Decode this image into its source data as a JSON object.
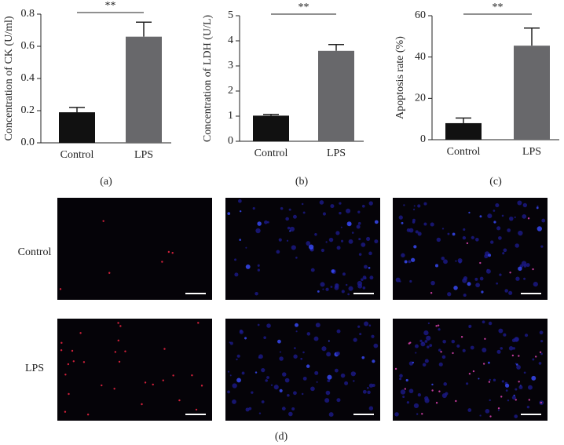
{
  "chart_data": [
    {
      "type": "bar",
      "panel_label": "(a)",
      "ylabel": "Concentration of CK (U/ml)",
      "categories": [
        "Control",
        "LPS"
      ],
      "values": [
        0.19,
        0.66
      ],
      "errors": [
        0.03,
        0.09
      ],
      "colors": [
        "#111111",
        "#68686b"
      ],
      "annotation": "**",
      "ylim": [
        0,
        0.8
      ],
      "yticks": [
        {
          "value": 0,
          "label": "0.0"
        },
        0.2,
        0.4,
        0.6,
        0.8
      ]
    },
    {
      "type": "bar",
      "panel_label": "(b)",
      "ylabel": "Concentration of LDH (U/L)",
      "categories": [
        "Control",
        "LPS"
      ],
      "values": [
        1.02,
        3.6
      ],
      "errors": [
        0.05,
        0.25
      ],
      "colors": [
        "#111111",
        "#68686b"
      ],
      "annotation": "**",
      "ylim": [
        0,
        5
      ],
      "yticks": [
        0,
        1,
        2,
        3,
        4,
        5
      ]
    },
    {
      "type": "bar",
      "panel_label": "(c)",
      "ylabel": "Apoptosis rate (%)",
      "categories": [
        "Control",
        "LPS"
      ],
      "values": [
        8,
        45.5
      ],
      "errors": [
        2.5,
        8.5
      ],
      "colors": [
        "#111111",
        "#68686b"
      ],
      "annotation": "**",
      "ylim": [
        0,
        60
      ],
      "yticks": [
        0,
        20,
        40,
        60
      ]
    }
  ],
  "panel_d": {
    "row_labels": [
      "Control",
      "LPS"
    ],
    "label": "(d)"
  }
}
